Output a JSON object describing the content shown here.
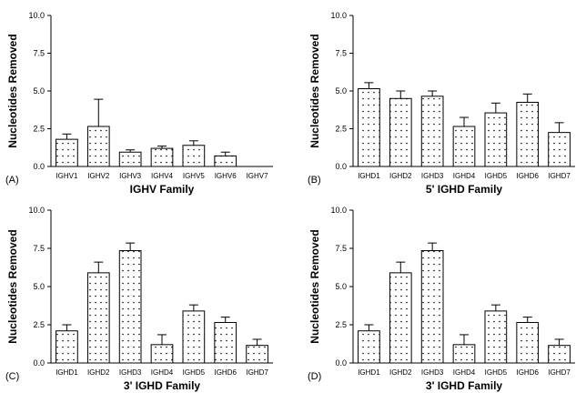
{
  "chart_data": [
    {
      "type": "bar",
      "panel_label": "(A)",
      "xlabel": "IGHV Family",
      "ylabel": "Nucleotides Removed",
      "ylim": [
        0,
        10
      ],
      "yticks": [
        "0.0",
        "2.5",
        "5.0",
        "7.5",
        "10.0"
      ],
      "categories": [
        "IGHV1",
        "IGHV2",
        "IGHV3",
        "IGHV4",
        "IGHV5",
        "IGHV6",
        "IGHV7"
      ],
      "values": [
        1.8,
        2.65,
        0.95,
        1.2,
        1.4,
        0.7,
        null
      ],
      "error_upper": [
        2.15,
        4.45,
        1.1,
        1.35,
        1.7,
        0.95,
        null
      ],
      "bar_fill": "dotted white",
      "grid": false
    },
    {
      "type": "bar",
      "panel_label": "(B)",
      "xlabel": "5' IGHD Family",
      "ylabel": "Nucleotides Removed",
      "ylim": [
        0,
        10
      ],
      "yticks": [
        "0.0",
        "2.5",
        "5.0",
        "7.5",
        "10.0"
      ],
      "categories": [
        "IGHD1",
        "IGHD2",
        "IGHD3",
        "IGHD4",
        "IGHD5",
        "IGHD6",
        "IGHD7"
      ],
      "values": [
        5.15,
        4.5,
        4.65,
        2.65,
        3.55,
        4.25,
        2.25
      ],
      "error_upper": [
        5.55,
        5.0,
        5.0,
        3.25,
        4.2,
        4.8,
        2.9
      ],
      "bar_fill": "dotted white",
      "grid": false
    },
    {
      "type": "bar",
      "panel_label": "(C)",
      "xlabel": "3' IGHD Family",
      "ylabel": "Nucleotides Removed",
      "ylim": [
        0,
        10
      ],
      "yticks": [
        "0.0",
        "2.5",
        "5.0",
        "7.5",
        "10.0"
      ],
      "categories": [
        "IGHD1",
        "IGHD2",
        "IGHD3",
        "IGHD4",
        "IGHD5",
        "IGHD6",
        "IGHD7"
      ],
      "values": [
        2.1,
        5.9,
        7.35,
        1.2,
        3.4,
        2.65,
        1.15
      ],
      "error_upper": [
        2.5,
        6.6,
        7.85,
        1.85,
        3.8,
        3.0,
        1.55
      ],
      "bar_fill": "dotted white",
      "grid": false
    },
    {
      "type": "bar",
      "panel_label": "(D)",
      "xlabel": "3' IGHD Family",
      "ylabel": "Nucleotides Removed",
      "ylim": [
        0,
        10
      ],
      "yticks": [
        "0.0",
        "2.5",
        "5.0",
        "7.5",
        "10.0"
      ],
      "categories": [
        "IGHD1",
        "IGHD2",
        "IGHD3",
        "IGHD4",
        "IGHD5",
        "IGHD6",
        "IGHD7"
      ],
      "values": [
        2.1,
        5.9,
        7.35,
        1.2,
        3.4,
        2.65,
        1.15
      ],
      "error_upper": [
        2.5,
        6.6,
        7.85,
        1.85,
        3.8,
        3.0,
        1.55
      ],
      "bar_fill": "dotted white",
      "grid": false
    }
  ]
}
